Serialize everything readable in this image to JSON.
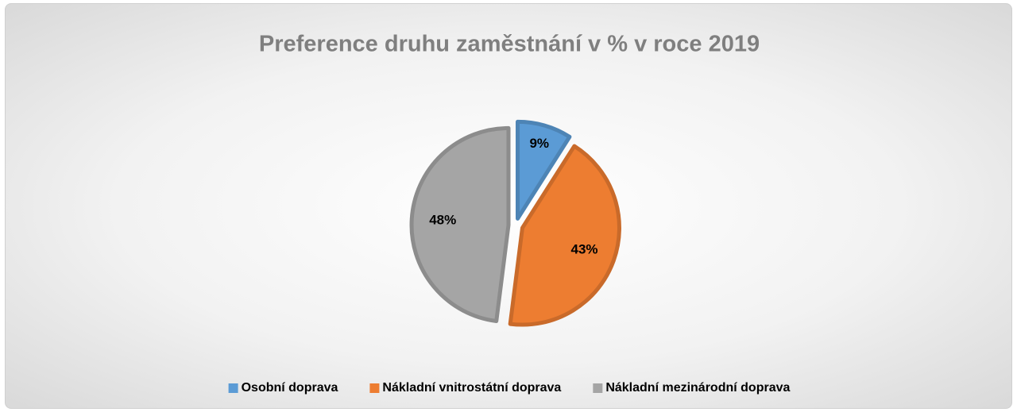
{
  "chart_data": {
    "type": "pie",
    "title": "Preference druhu zaměstnání v % v roce 2019",
    "categories": [
      "Osobní doprava",
      "Nákladní vnitrostátní doprava",
      "Nákladní mezinárodní doprava"
    ],
    "values": [
      9,
      43,
      48
    ],
    "value_labels": [
      "9%",
      "43%",
      "48%"
    ],
    "colors": [
      "#5b9bd5",
      "#ed7d31",
      "#a5a5a5"
    ],
    "legend": "bottom"
  }
}
